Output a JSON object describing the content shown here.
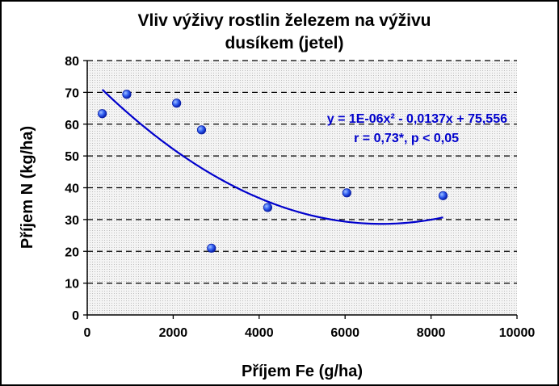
{
  "chart_data": {
    "type": "scatter",
    "title_lines": [
      "Vliv výživy rostlin železem na výživu",
      "dusíkem (jetel)"
    ],
    "xlabel": "Příjem Fe (g/ha)",
    "ylabel": "Příjem N (kg/ha)",
    "xlim": [
      0,
      10000
    ],
    "ylim": [
      0,
      80
    ],
    "x_ticks": [
      "0",
      "2000",
      "4000",
      "6000",
      "8000",
      "10000"
    ],
    "y_ticks": [
      "0",
      "10",
      "20",
      "30",
      "40",
      "50",
      "60",
      "70",
      "80"
    ],
    "x_tick_values": [
      0,
      2000,
      4000,
      6000,
      8000,
      10000
    ],
    "y_tick_values": [
      0,
      10,
      20,
      30,
      40,
      50,
      60,
      70,
      80
    ],
    "grid": "horizontal-dashed",
    "points": [
      {
        "x": 350,
        "y": 63.3
      },
      {
        "x": 920,
        "y": 69.4
      },
      {
        "x": 2080,
        "y": 66.6
      },
      {
        "x": 2660,
        "y": 58.2
      },
      {
        "x": 2890,
        "y": 21.0
      },
      {
        "x": 4200,
        "y": 33.8
      },
      {
        "x": 6040,
        "y": 38.4
      },
      {
        "x": 8280,
        "y": 37.5
      }
    ],
    "trendline": {
      "a": 1e-06,
      "b": -0.0137,
      "c": 75.556,
      "x_start": 350,
      "x_end": 8280
    },
    "annotations": [
      "y = 1E-06x² - 0,0137x + 75,556",
      "r = 0,73*, p < 0,05"
    ],
    "colors": {
      "marker": "#1f3ee0",
      "trendline": "#0000cc",
      "plot_bg": "#eeeeee",
      "grid": "#000000"
    }
  }
}
